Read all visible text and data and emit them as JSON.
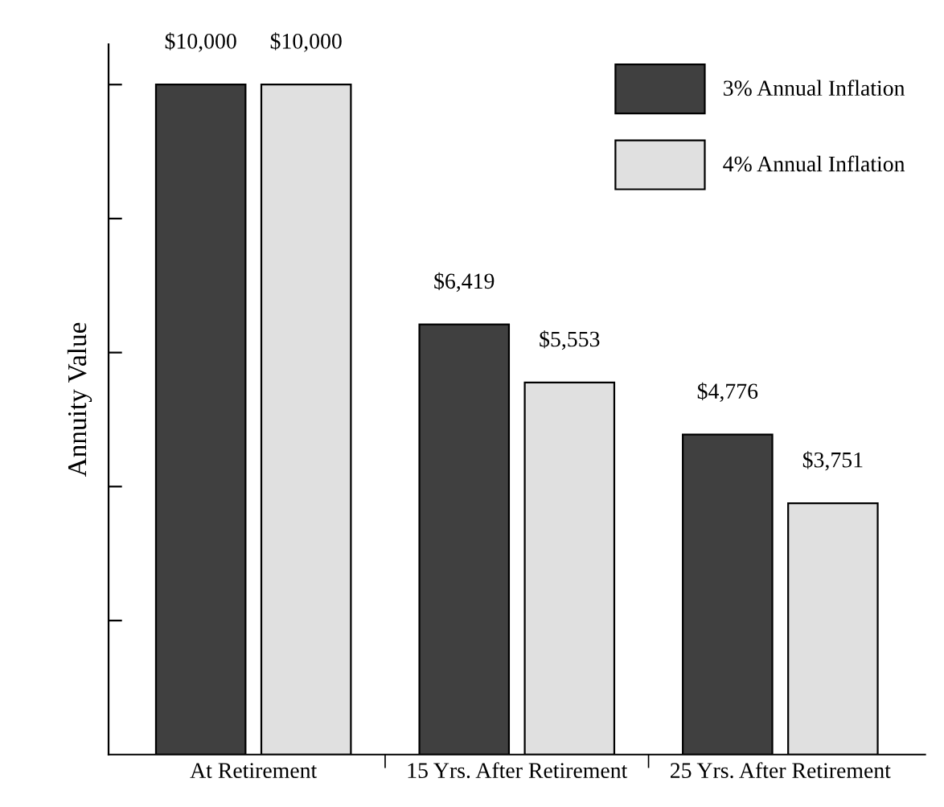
{
  "chart_data": {
    "type": "bar",
    "ylabel": "Annuity Value",
    "categories": [
      "At Retirement",
      "15 Yrs. After Retirement",
      "25 Yrs. After Retirement"
    ],
    "series": [
      {
        "name": "3% Annual Inflation",
        "color": "#404040",
        "values": [
          10000,
          6419,
          4776
        ],
        "value_labels": [
          "$10,000",
          "$6,419",
          "$4,776"
        ]
      },
      {
        "name": "4% Annual Inflation",
        "color": "#e0e0e0",
        "values": [
          10000,
          5553,
          3751
        ],
        "value_labels": [
          "$10,000",
          "$5,553",
          "$3,751"
        ]
      }
    ],
    "ylim": [
      0,
      10600
    ],
    "yticks": [
      {
        "value": 2000,
        "label": null
      },
      {
        "value": 4000,
        "label": null
      },
      {
        "value": 6000,
        "label": null
      },
      {
        "value": 8000,
        "label": null
      },
      {
        "value": 10000,
        "label": null
      }
    ],
    "legend": "top right",
    "grid": false
  }
}
